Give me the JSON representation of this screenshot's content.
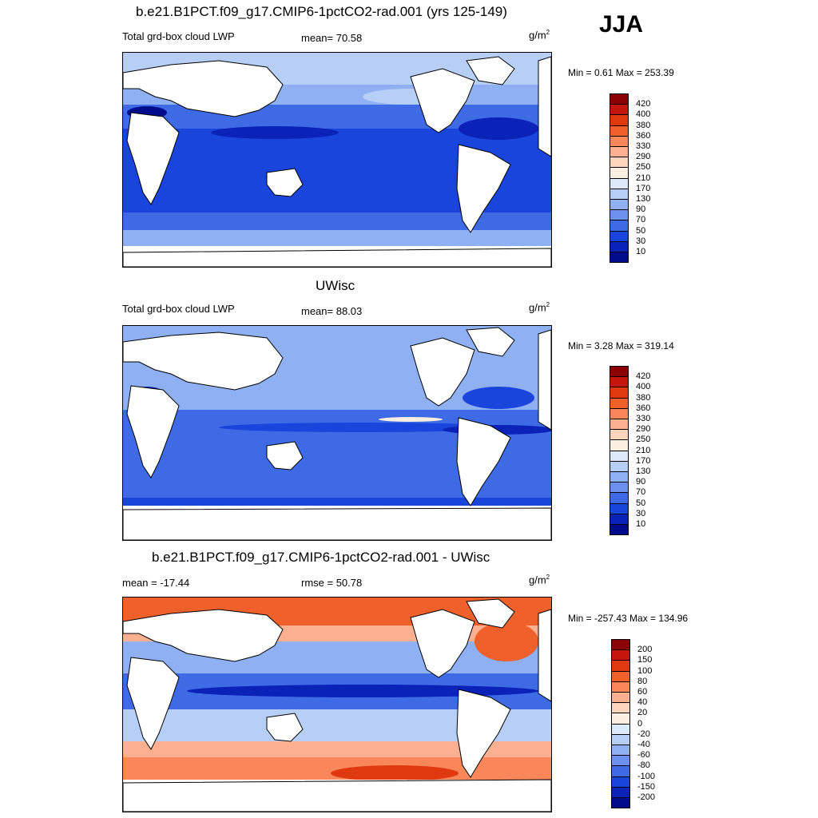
{
  "season": "JJA",
  "panels": [
    {
      "title": "b.e21.B1PCT.f09_g17.CMIP6-1pctCO2-rad.001 (yrs 125-149)",
      "left_label": "Total grd-box cloud LWP",
      "mid_label": "mean=  70.58",
      "units": "g/m",
      "units_sup": "2",
      "minmax": "Min =   0.61 Max = 253.39",
      "colorbar": {
        "labels": [
          "420",
          "400",
          "380",
          "360",
          "330",
          "290",
          "250",
          "210",
          "170",
          "130",
          "90",
          "70",
          "50",
          "30",
          "10"
        ],
        "colors": [
          "#8b0000",
          "#c4160c",
          "#e0390f",
          "#f0602a",
          "#f9875a",
          "#fcb08f",
          "#fdd5bd",
          "#fdeee2",
          "#dce9fb",
          "#b7cff7",
          "#8fb0f3",
          "#6b90ee",
          "#3f6ae6",
          "#1a45dd",
          "#0a22b8",
          "#000c8c"
        ]
      }
    },
    {
      "title": "UWisc",
      "left_label": "Total grd-box cloud LWP",
      "mid_label": "mean=  88.03",
      "units": "g/m",
      "units_sup": "2",
      "minmax": "Min =   3.28 Max = 319.14",
      "colorbar": {
        "labels": [
          "420",
          "400",
          "380",
          "360",
          "330",
          "290",
          "250",
          "210",
          "170",
          "130",
          "90",
          "70",
          "50",
          "30",
          "10"
        ],
        "colors": [
          "#8b0000",
          "#c4160c",
          "#e0390f",
          "#f0602a",
          "#f9875a",
          "#fcb08f",
          "#fdd5bd",
          "#fdeee2",
          "#dce9fb",
          "#b7cff7",
          "#8fb0f3",
          "#6b90ee",
          "#3f6ae6",
          "#1a45dd",
          "#0a22b8",
          "#000c8c"
        ]
      }
    },
    {
      "title": "b.e21.B1PCT.f09_g17.CMIP6-1pctCO2-rad.001 - UWisc",
      "left_label": "mean = -17.44",
      "mid_label": "rmse =  50.78",
      "units": "g/m",
      "units_sup": "2",
      "minmax": "Min = -257.43 Max = 134.96",
      "colorbar": {
        "labels": [
          "200",
          "150",
          "100",
          "80",
          "60",
          "40",
          "20",
          "0",
          "-20",
          "-40",
          "-60",
          "-80",
          "-100",
          "-150",
          "-200"
        ],
        "colors": [
          "#8b0000",
          "#c4160c",
          "#e0390f",
          "#f0602a",
          "#f9875a",
          "#fcb08f",
          "#fdd5bd",
          "#fdeee2",
          "#dce9fb",
          "#b7cff7",
          "#8fb0f3",
          "#6b90ee",
          "#3f6ae6",
          "#1a45dd",
          "#0a22b8",
          "#000c8c"
        ]
      }
    }
  ],
  "map_colors": {
    "ocean_dark": "#0a2fd0",
    "ocean_mid": "#3f6ae6",
    "ocean_light": "#8fb0f3",
    "ocean_pale": "#dce9fb",
    "land": "#ffffff",
    "diff_warm": "#f0602a",
    "diff_pale_warm": "#fcb08f",
    "diff_cool": "#6b90ee",
    "diff_deep": "#0a22b8"
  }
}
